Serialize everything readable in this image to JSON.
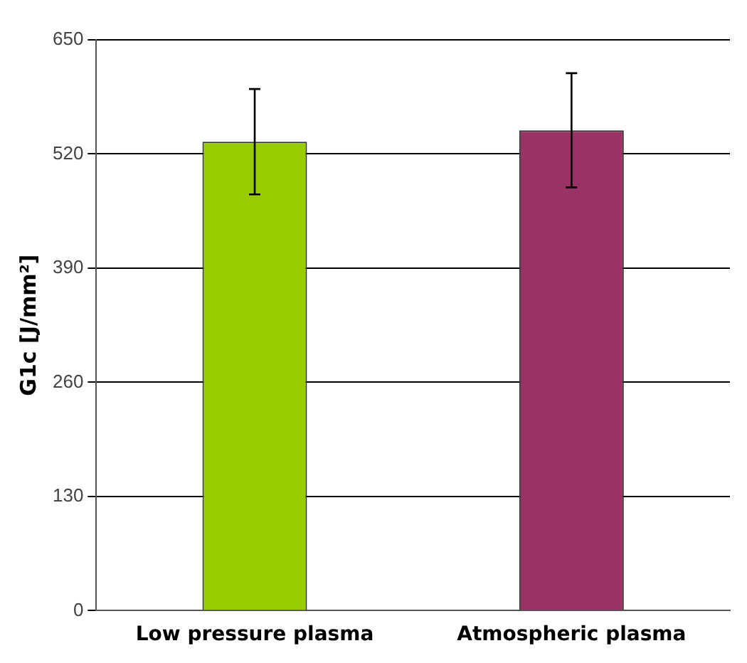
{
  "chart_data": {
    "type": "bar",
    "ylabel": "G1c [J/mm²]",
    "categories": [
      "Low pressure plasma",
      "Atmospheric plasma"
    ],
    "values": [
      534,
      547
    ],
    "colors": [
      "#99cc00",
      "#993366"
    ],
    "errors": [
      60,
      65
    ],
    "ylim": [
      0,
      650
    ],
    "yticks": [
      0,
      130,
      260,
      390,
      520,
      650
    ],
    "grid": "y",
    "legend": false
  }
}
